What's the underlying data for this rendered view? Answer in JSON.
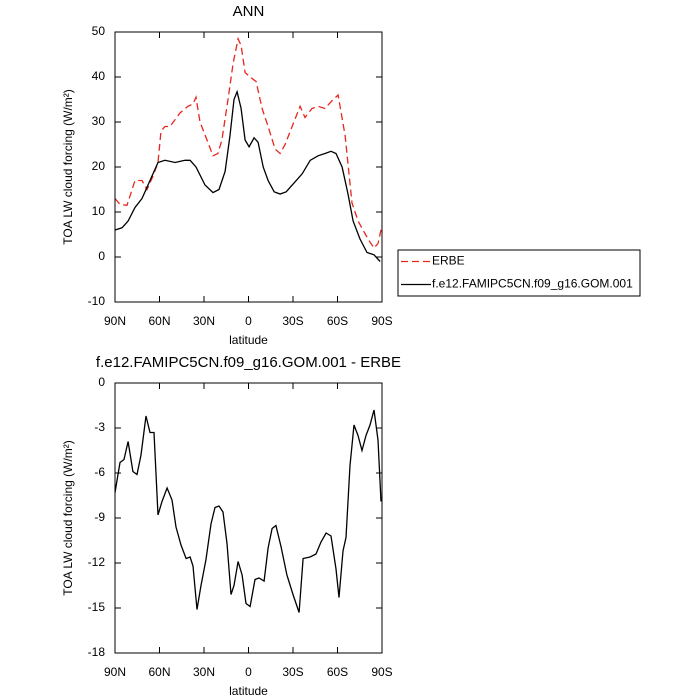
{
  "chart_data": [
    {
      "type": "line",
      "title": "ANN",
      "xlabel": "latitude",
      "ylabel": "TOA LW cloud forcing (W/m²)",
      "xlim": [
        90,
        -90
      ],
      "xticks": [
        {
          "value": 90,
          "label": "90N"
        },
        {
          "value": 60,
          "label": "60N"
        },
        {
          "value": 30,
          "label": "30N"
        },
        0,
        {
          "value": -30,
          "label": "30S"
        },
        {
          "value": -60,
          "label": "60S"
        },
        {
          "value": -90,
          "label": "90S"
        }
      ],
      "ylim": [
        -10,
        50
      ],
      "yticks": [
        -10,
        0,
        10,
        20,
        30,
        40,
        50
      ],
      "legend": "outside-right",
      "series": [
        {
          "name": "ERBE",
          "color": "#e8261e",
          "dash": true,
          "x": [
            90,
            86.6,
            81.9,
            76.5,
            71.8,
            68.4,
            64.4,
            61.0,
            59.0,
            56.3,
            52.9,
            46.2,
            40.8,
            37.4,
            35.4,
            32.7,
            28.0,
            23.9,
            20.6,
            17.9,
            13.8,
            10.4,
            7.0,
            5.0,
            2.3,
            -1.1,
            -5.1,
            -9.2,
            -13.2,
            -17.9,
            -21.3,
            -24.7,
            -29.4,
            -34.8,
            -38.1,
            -42.8,
            -46.9,
            -51.6,
            -55.6,
            -60.4,
            -65.1,
            -69.8,
            -73.9,
            -77.2,
            -80.6,
            -84.6,
            -87.3,
            -90
          ],
          "values": [
            13,
            11.7,
            11.5,
            17,
            17,
            15,
            18,
            21,
            28,
            29,
            29,
            32,
            33.5,
            34,
            35.5,
            30,
            26,
            22.5,
            23,
            26,
            35,
            43,
            48.5,
            47,
            41,
            40,
            39,
            33,
            29,
            24,
            23,
            25,
            29,
            33.5,
            31,
            33,
            33.5,
            33,
            34.5,
            36,
            27,
            12,
            8,
            6,
            4,
            2,
            3,
            7
          ]
        },
        {
          "name": "f.e12.FAMIPC5CN.f09_g16.GOM.001",
          "color": "#000000",
          "dash": false,
          "x": [
            90,
            85.3,
            81.2,
            76.5,
            71.8,
            66.4,
            61.0,
            56.3,
            49.5,
            42.8,
            39.4,
            35.4,
            29.3,
            23.9,
            19.9,
            15.8,
            12.5,
            9.8,
            7.7,
            5.0,
            2.3,
            -0.4,
            -3.8,
            -6.5,
            -9.9,
            -13.2,
            -17.3,
            -21.3,
            -25.4,
            -30.8,
            -36.2,
            -41.6,
            -46.9,
            -51.6,
            -55.6,
            -59.0,
            -63.1,
            -67.1,
            -70.5,
            -75.2,
            -79.9,
            -84.6,
            -88.7
          ],
          "values": [
            6,
            6.5,
            8,
            11,
            13,
            17,
            21,
            21.5,
            21,
            21.5,
            21.5,
            20,
            16,
            14.3,
            15,
            19,
            27,
            35,
            36.7,
            33,
            26,
            24.5,
            26.5,
            25.5,
            20,
            17,
            14.5,
            14,
            14.5,
            16.5,
            18.5,
            21.5,
            22.5,
            23,
            23.5,
            23,
            20,
            14,
            8,
            4,
            1,
            0.5,
            -1
          ]
        }
      ]
    },
    {
      "type": "line",
      "title": "f.e12.FAMIPC5CN.f09_g16.GOM.001 - ERBE",
      "xlabel": "latitude",
      "ylabel": "TOA LW cloud forcing (W/m²)",
      "xlim": [
        90,
        -90
      ],
      "xticks": [
        {
          "value": 90,
          "label": "90N"
        },
        {
          "value": 60,
          "label": "60N"
        },
        {
          "value": 30,
          "label": "30N"
        },
        0,
        {
          "value": -30,
          "label": "30S"
        },
        {
          "value": -60,
          "label": "60S"
        },
        {
          "value": -90,
          "label": "90S"
        }
      ],
      "ylim": [
        -18,
        0
      ],
      "yticks": [
        -18,
        -15,
        -12,
        -9,
        -6,
        -3,
        0
      ],
      "series": [
        {
          "color": "#000000",
          "dash": false,
          "x": [
            90,
            86.6,
            83.9,
            81.2,
            77.9,
            75.2,
            72.5,
            69.1,
            66.4,
            63.7,
            61.0,
            58.3,
            54.9,
            51.6,
            48.9,
            45.5,
            42.1,
            39.4,
            37.4,
            34.7,
            32.0,
            28.7,
            25.3,
            22.6,
            19.9,
            17.2,
            14.5,
            11.8,
            9.8,
            7.0,
            4.3,
            1.7,
            -1.1,
            -4.4,
            -7.1,
            -10.5,
            -13.2,
            -15.9,
            -18.5,
            -21.9,
            -25.9,
            -30.0,
            -34.1,
            -36.8,
            -41.5,
            -45.5,
            -48.9,
            -52.3,
            -55.6,
            -59.0,
            -61.0,
            -63.7,
            -65.7,
            -68.4,
            -71.1,
            -73.8,
            -76.5,
            -79.2,
            -81.9,
            -84.6,
            -87.3,
            -89.3
          ],
          "values": [
            -7.3,
            -5.3,
            -5.1,
            -3.9,
            -5.9,
            -6.1,
            -4.8,
            -2.2,
            -3.3,
            -3.3,
            -8.8,
            -7.9,
            -7.0,
            -7.8,
            -9.6,
            -10.8,
            -11.7,
            -11.6,
            -12.2,
            -15.1,
            -13.5,
            -11.8,
            -9.4,
            -8.3,
            -8.2,
            -8.6,
            -10.7,
            -14.1,
            -13.5,
            -11.9,
            -12.8,
            -14.7,
            -14.9,
            -13.1,
            -13.0,
            -13.2,
            -11.0,
            -9.7,
            -9.5,
            -10.9,
            -12.8,
            -14.1,
            -15.3,
            -11.7,
            -11.6,
            -11.4,
            -10.6,
            -10.0,
            -10.2,
            -12.4,
            -14.3,
            -11.2,
            -10.3,
            -5.5,
            -2.8,
            -3.5,
            -4.5,
            -3.5,
            -2.8,
            -1.8,
            -3.8,
            -7.9
          ]
        }
      ]
    }
  ]
}
